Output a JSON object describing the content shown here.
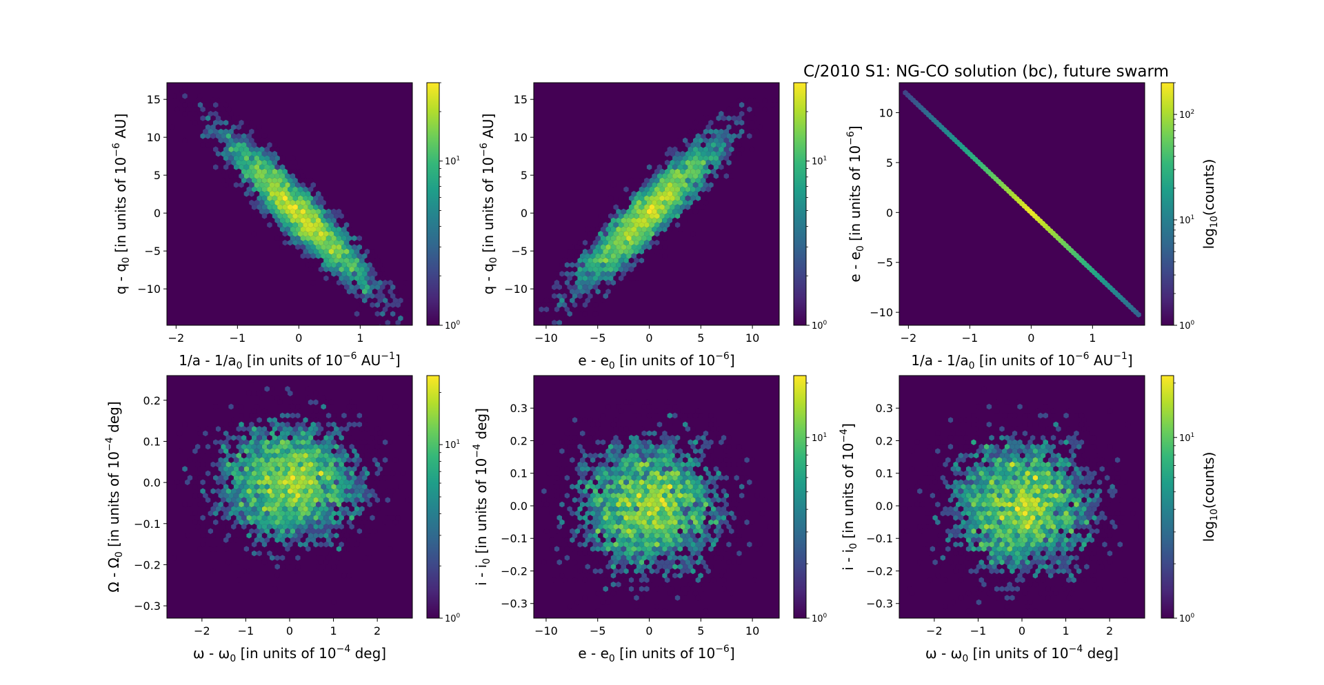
{
  "figure": {
    "title": "C/2010 S1: NG-CO solution (bc), future swarm"
  },
  "colormap": [
    "#440154",
    "#482878",
    "#3e4989",
    "#31688e",
    "#26828e",
    "#1f9e89",
    "#35b779",
    "#6ece58",
    "#b5de2b",
    "#fde725"
  ],
  "chart_data": [
    {
      "type": "heatmap",
      "name": "hexbin-a-q",
      "xlabel": "1/a - 1/a",
      "xlabel_sub": "0",
      "xlabel_post": " [in units of 10",
      "xlabel_sup": "−6",
      "xlabel_tail": " AU",
      "xlabel_tail_sup": "−1",
      "xlabel_end": "]",
      "ylabel": "q - q",
      "ylabel_sub": "0",
      "ylabel_post": " [in units of 10",
      "ylabel_sup": "−6",
      "ylabel_tail": " AU]",
      "xlim": [
        -2.15,
        1.85
      ],
      "ylim": [
        -14.8,
        17.2
      ],
      "xticks": [
        -2,
        -1,
        0,
        1
      ],
      "yticks": [
        -10,
        -5,
        0,
        5,
        10,
        15
      ],
      "distribution": {
        "sx": 0.62,
        "sy": 5.2,
        "rho": -0.93
      },
      "colorbar": {
        "range": [
          1,
          30
        ],
        "ticks": [
          {
            "v": 1,
            "label": "10",
            "sup": "0"
          },
          {
            "v": 10,
            "label": "10",
            "sup": "1"
          }
        ],
        "label": ""
      }
    },
    {
      "type": "heatmap",
      "name": "hexbin-e-q",
      "xlabel": "e - e",
      "xlabel_sub": "0",
      "xlabel_post": " [in units of 10",
      "xlabel_sup": "−6",
      "xlabel_tail": "]",
      "ylabel": "q - q",
      "ylabel_sub": "0",
      "ylabel_post": " [in units of 10",
      "ylabel_sup": "−6",
      "ylabel_tail": " AU]",
      "xlim": [
        -11.2,
        12.6
      ],
      "ylim": [
        -14.8,
        17.2
      ],
      "xticks": [
        -10,
        -5,
        0,
        5,
        10
      ],
      "yticks": [
        -10,
        -5,
        0,
        5,
        10,
        15
      ],
      "distribution": {
        "sx": 3.7,
        "sy": 5.2,
        "rho": 0.92
      },
      "colorbar": {
        "range": [
          1,
          30
        ],
        "ticks": [
          {
            "v": 1,
            "label": "10",
            "sup": "0"
          },
          {
            "v": 10,
            "label": "10",
            "sup": "1"
          }
        ],
        "label": ""
      }
    },
    {
      "type": "heatmap",
      "name": "hexbin-a-e",
      "xlabel": "1/a - 1/a",
      "xlabel_sub": "0",
      "xlabel_post": " [in units of 10",
      "xlabel_sup": "−6",
      "xlabel_tail": " AU",
      "xlabel_tail_sup": "−1",
      "xlabel_end": "]",
      "ylabel": "e - e",
      "ylabel_sub": "0",
      "ylabel_post": " [in units of 10",
      "ylabel_sup": "−6",
      "ylabel_tail": "]",
      "xlim": [
        -2.15,
        1.85
      ],
      "ylim": [
        -11.3,
        13.0
      ],
      "xticks": [
        -2,
        -1,
        0,
        1
      ],
      "yticks": [
        -10,
        -5,
        0,
        5,
        10
      ],
      "line": {
        "slope": -5.85,
        "x_from": -2.05,
        "x_to": 1.75
      },
      "colorbar": {
        "range": [
          1,
          200
        ],
        "ticks": [
          {
            "v": 1,
            "label": "10",
            "sup": "0"
          },
          {
            "v": 10,
            "label": "10",
            "sup": "1"
          },
          {
            "v": 100,
            "label": "10",
            "sup": "2"
          }
        ],
        "label": "log",
        "label_sub": "10",
        "label_post": "(counts)"
      }
    },
    {
      "type": "heatmap",
      "name": "hexbin-omega-Omega",
      "xlabel": "ω - ω",
      "xlabel_sub": "0",
      "xlabel_post": " [in units of 10",
      "xlabel_sup": "−4",
      "xlabel_tail": " deg]",
      "ylabel": "Ω - Ω",
      "ylabel_sub": "0",
      "ylabel_post": " [in units of 10",
      "ylabel_sup": "−4",
      "ylabel_tail": " deg]",
      "xlim": [
        -2.8,
        2.8
      ],
      "ylim": [
        -0.33,
        0.26
      ],
      "xticks": [
        -2,
        -1,
        0,
        1,
        2
      ],
      "yticks": [
        -0.3,
        -0.2,
        -0.1,
        0.0,
        0.1,
        0.2
      ],
      "yticks_fmt": 1,
      "distribution": {
        "sx": 0.85,
        "sy": 0.075,
        "rho": 0.0
      },
      "colorbar": {
        "range": [
          1,
          25
        ],
        "ticks": [
          {
            "v": 1,
            "label": "10",
            "sup": "0"
          },
          {
            "v": 10,
            "label": "10",
            "sup": "1"
          }
        ],
        "label": ""
      }
    },
    {
      "type": "heatmap",
      "name": "hexbin-e-i",
      "xlabel": "e - e",
      "xlabel_sub": "0",
      "xlabel_post": " [in units of 10",
      "xlabel_sup": "−6",
      "xlabel_tail": "]",
      "ylabel": "i - i",
      "ylabel_sub": "0",
      "ylabel_post": " [in units of 10",
      "ylabel_sup": "−4",
      "ylabel_tail": " deg]",
      "xlim": [
        -11.2,
        12.6
      ],
      "ylim": [
        -0.345,
        0.4
      ],
      "xticks": [
        -10,
        -5,
        0,
        5,
        10
      ],
      "yticks": [
        -0.3,
        -0.2,
        -0.1,
        0.0,
        0.1,
        0.2,
        0.3
      ],
      "yticks_fmt": 1,
      "distribution": {
        "sx": 3.7,
        "sy": 0.105,
        "rho": 0.0
      },
      "colorbar": {
        "range": [
          1,
          22
        ],
        "ticks": [
          {
            "v": 1,
            "label": "10",
            "sup": "0"
          },
          {
            "v": 10,
            "label": "10",
            "sup": "1"
          }
        ],
        "label": ""
      }
    },
    {
      "type": "heatmap",
      "name": "hexbin-omega-i",
      "xlabel": "ω - ω",
      "xlabel_sub": "0",
      "xlabel_post": " [in units of 10",
      "xlabel_sup": "−4",
      "xlabel_tail": " deg]",
      "ylabel": "i - i",
      "ylabel_sub": "0",
      "ylabel_post": " [in units of 10",
      "ylabel_sup": "−4",
      "ylabel_tail": "]",
      "xlim": [
        -2.8,
        2.8
      ],
      "ylim": [
        -0.345,
        0.4
      ],
      "xticks": [
        -2,
        -1,
        0,
        1,
        2
      ],
      "yticks": [
        -0.3,
        -0.2,
        -0.1,
        0.0,
        0.1,
        0.2,
        0.3
      ],
      "yticks_fmt": 1,
      "distribution": {
        "sx": 0.85,
        "sy": 0.105,
        "rho": 0.0
      },
      "colorbar": {
        "range": [
          1,
          22
        ],
        "ticks": [
          {
            "v": 1,
            "label": "10",
            "sup": "0"
          },
          {
            "v": 10,
            "label": "10",
            "sup": "1"
          }
        ],
        "label": "log",
        "label_sub": "10",
        "label_post": "(counts)"
      }
    }
  ]
}
